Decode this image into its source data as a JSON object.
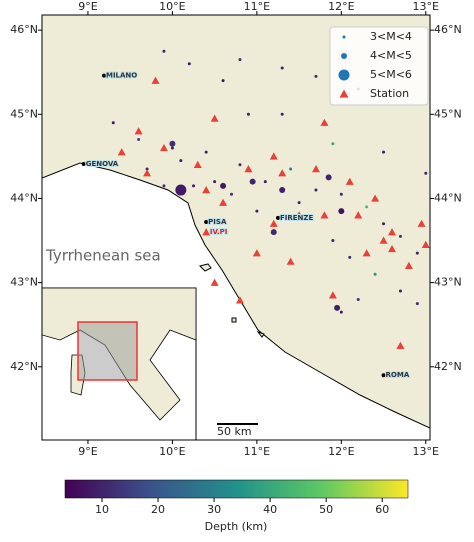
{
  "map": {
    "xlim": [
      8.456,
      13.05
    ],
    "ylim": [
      41.13,
      46.18
    ],
    "xticks": [
      {
        "value": 9,
        "label": "9°E"
      },
      {
        "value": 10,
        "label": "10°E"
      },
      {
        "value": 11,
        "label": "11°E"
      },
      {
        "value": 12,
        "label": "12°E"
      },
      {
        "value": 13,
        "label": "13°E"
      }
    ],
    "yticks": [
      {
        "value": 42,
        "label": "42°N"
      },
      {
        "value": 43,
        "label": "43°N"
      },
      {
        "value": 44,
        "label": "44°N"
      },
      {
        "value": 45,
        "label": "45°N"
      },
      {
        "value": 46,
        "label": "46°N"
      }
    ],
    "sea_label": "Tyrrhenean sea",
    "scale_label": "50 km",
    "legend_color": "#1f77b4",
    "series": [
      {
        "name": "3<M<4",
        "lon": [
          9.9,
          10.2,
          10.8,
          11.3,
          10.6,
          11.7,
          12.2,
          9.3,
          9.6,
          10.0,
          10.4,
          10.8,
          11.1,
          11.4,
          11.7,
          12.0,
          12.3,
          12.5,
          12.7,
          12.9,
          11.9,
          12.1,
          12.4,
          12.7,
          12.9,
          10.5,
          10.7,
          11.5,
          10.9,
          11.3,
          9.7,
          9.9,
          10.1,
          11.9,
          12.5,
          13.0,
          12.2,
          12.0,
          10.25,
          11.0
        ],
        "lat": [
          45.75,
          45.6,
          45.65,
          45.55,
          45.4,
          45.45,
          45.3,
          44.9,
          44.7,
          44.6,
          44.55,
          44.4,
          44.2,
          44.35,
          44.1,
          44.05,
          43.9,
          43.7,
          43.55,
          43.35,
          43.5,
          43.3,
          43.1,
          42.9,
          42.75,
          44.2,
          44.05,
          43.95,
          45.0,
          45.0,
          44.35,
          44.15,
          44.45,
          44.65,
          44.55,
          44.3,
          42.8,
          42.65,
          44.15,
          43.85
        ],
        "depth": [
          10,
          8,
          12,
          9,
          7,
          11,
          10,
          8,
          15,
          9,
          10,
          12,
          8,
          30,
          9,
          10,
          45,
          8,
          12,
          10,
          9,
          11,
          35,
          8,
          10,
          9,
          12,
          10,
          8,
          9,
          10,
          11,
          8,
          40,
          9,
          10,
          12,
          8,
          9,
          10
        ]
      },
      {
        "name": "4<M<5",
        "lon": [
          10.0,
          10.95,
          10.6,
          11.3,
          12.0,
          11.85,
          11.2,
          11.95
        ],
        "lat": [
          44.65,
          44.2,
          44.15,
          44.1,
          43.85,
          44.25,
          43.6,
          42.7
        ],
        "depth": [
          12,
          10,
          8,
          9,
          7,
          10,
          11,
          9
        ]
      },
      {
        "name": "5<M<6",
        "lon": [
          10.1
        ],
        "lat": [
          44.1
        ],
        "depth": [
          8
        ]
      },
      {
        "name": "Station",
        "color": "#e8413a",
        "lon": [
          9.8,
          10.5,
          9.6,
          9.9,
          9.4,
          10.3,
          9.7,
          10.4,
          10.6,
          10.9,
          11.3,
          11.7,
          12.1,
          12.4,
          11.2,
          11.5,
          11.8,
          12.2,
          12.5,
          12.3,
          12.6,
          12.8,
          13.0,
          12.6,
          11.4,
          11.0,
          10.8,
          10.4,
          10.5,
          11.9,
          12.7,
          12.95,
          11.2,
          11.8
        ],
        "lat": [
          45.4,
          44.95,
          44.8,
          44.6,
          44.55,
          44.4,
          44.3,
          44.1,
          43.95,
          44.35,
          44.3,
          44.35,
          44.2,
          44.0,
          43.7,
          43.8,
          43.8,
          43.8,
          43.5,
          43.35,
          43.4,
          43.2,
          43.45,
          43.6,
          43.25,
          43.35,
          42.79,
          43.6,
          43.0,
          42.85,
          42.25,
          43.7,
          44.5,
          44.9
        ]
      }
    ],
    "cities": [
      {
        "name": "MILANO",
        "lon": 9.19,
        "lat": 45.46
      },
      {
        "name": "GENOVA",
        "lon": 8.95,
        "lat": 44.41
      },
      {
        "name": "PISA",
        "lon": 10.4,
        "lat": 43.72
      },
      {
        "name": "IV.PI",
        "lon": 10.42,
        "lat": 43.6
      },
      {
        "name": "FIRENZE",
        "lon": 11.25,
        "lat": 43.77
      },
      {
        "name": "ROMA",
        "lon": 12.5,
        "lat": 41.9
      }
    ],
    "colorbar": {
      "label": "Depth (km)",
      "clim": [
        3.4,
        64.6
      ],
      "ticks": [
        10,
        20,
        30,
        40,
        50,
        60
      ]
    }
  }
}
